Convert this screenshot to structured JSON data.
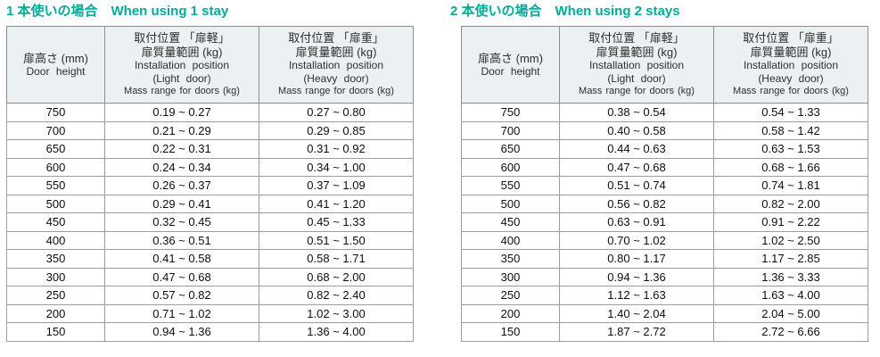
{
  "colors": {
    "accent_teal": "#00AB9A",
    "header_bg": "#EBF0F2",
    "border": "#9c9c9c",
    "text": "#0d0d0d"
  },
  "tables": [
    {
      "title_jp": "1 本使いの場合",
      "title_en": "When using 1 stay",
      "columns": {
        "height": {
          "jp": "扉高さ (mm)",
          "en": "Door height"
        },
        "light": {
          "jp_line1": "取付位置 「扉軽」",
          "jp_line2": "扉質量範囲 (kg)",
          "en_line1": "Installation position",
          "en_line2": "(Light door)",
          "en_line3": "Mass range for doors (kg)"
        },
        "heavy": {
          "jp_line1": "取付位置 「扉重」",
          "jp_line2": "扉質量範囲 (kg)",
          "en_line1": "Installation position",
          "en_line2": "(Heavy door)",
          "en_line3": "Mass range for doors (kg)"
        }
      },
      "rows": [
        {
          "height": "750",
          "light": "0.19 ~ 0.27",
          "heavy": "0.27 ~ 0.80"
        },
        {
          "height": "700",
          "light": "0.21 ~ 0.29",
          "heavy": "0.29 ~ 0.85"
        },
        {
          "height": "650",
          "light": "0.22 ~ 0.31",
          "heavy": "0.31 ~ 0.92"
        },
        {
          "height": "600",
          "light": "0.24 ~ 0.34",
          "heavy": "0.34 ~ 1.00"
        },
        {
          "height": "550",
          "light": "0.26 ~ 0.37",
          "heavy": "0.37 ~ 1.09"
        },
        {
          "height": "500",
          "light": "0.29 ~ 0.41",
          "heavy": "0.41 ~ 1.20"
        },
        {
          "height": "450",
          "light": "0.32 ~ 0.45",
          "heavy": "0.45 ~ 1.33"
        },
        {
          "height": "400",
          "light": "0.36 ~ 0.51",
          "heavy": "0.51 ~ 1.50"
        },
        {
          "height": "350",
          "light": "0.41 ~ 0.58",
          "heavy": "0.58 ~ 1.71"
        },
        {
          "height": "300",
          "light": "0.47 ~ 0.68",
          "heavy": "0.68 ~ 2.00"
        },
        {
          "height": "250",
          "light": "0.57 ~ 0.82",
          "heavy": "0.82 ~ 2.40"
        },
        {
          "height": "200",
          "light": "0.71 ~ 1.02",
          "heavy": "1.02 ~ 3.00"
        },
        {
          "height": "150",
          "light": "0.94 ~ 1.36",
          "heavy": "1.36 ~ 4.00"
        }
      ]
    },
    {
      "title_jp": "2 本使いの場合",
      "title_en": "When using 2 stays",
      "columns": {
        "height": {
          "jp": "扉高さ (mm)",
          "en": "Door height"
        },
        "light": {
          "jp_line1": "取付位置 「扉軽」",
          "jp_line2": "扉質量範囲 (kg)",
          "en_line1": "Installation position",
          "en_line2": "(Light door)",
          "en_line3": "Mass range for doors (kg)"
        },
        "heavy": {
          "jp_line1": "取付位置 「扉重」",
          "jp_line2": "扉質量範囲 (kg)",
          "en_line1": "Installation position",
          "en_line2": "(Heavy door)",
          "en_line3": "Mass range for doors (kg)"
        }
      },
      "rows": [
        {
          "height": "750",
          "light": "0.38 ~ 0.54",
          "heavy": "0.54 ~ 1.33"
        },
        {
          "height": "700",
          "light": "0.40 ~ 0.58",
          "heavy": "0.58 ~ 1.42"
        },
        {
          "height": "650",
          "light": "0.44 ~ 0.63",
          "heavy": "0.63 ~ 1.53"
        },
        {
          "height": "600",
          "light": "0.47 ~ 0.68",
          "heavy": "0.68 ~ 1.66"
        },
        {
          "height": "550",
          "light": "0.51 ~ 0.74",
          "heavy": "0.74 ~ 1.81"
        },
        {
          "height": "500",
          "light": "0.56 ~ 0.82",
          "heavy": "0.82 ~ 2.00"
        },
        {
          "height": "450",
          "light": "0.63 ~ 0.91",
          "heavy": "0.91 ~ 2.22"
        },
        {
          "height": "400",
          "light": "0.70 ~ 1.02",
          "heavy": "1.02 ~ 2.50"
        },
        {
          "height": "350",
          "light": "0.80 ~ 1.17",
          "heavy": "1.17 ~ 2.85"
        },
        {
          "height": "300",
          "light": "0.94 ~ 1.36",
          "heavy": "1.36 ~ 3.33"
        },
        {
          "height": "250",
          "light": "1.12 ~ 1.63",
          "heavy": "1.63 ~ 4.00"
        },
        {
          "height": "200",
          "light": "1.40 ~ 2.04",
          "heavy": "2.04 ~ 5.00"
        },
        {
          "height": "150",
          "light": "1.87 ~ 2.72",
          "heavy": "2.72 ~ 6.66"
        }
      ]
    }
  ]
}
